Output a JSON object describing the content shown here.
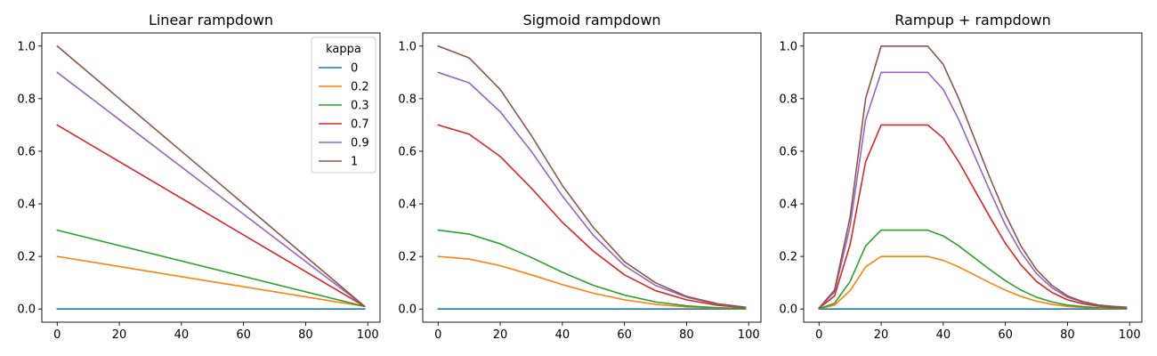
{
  "chart_data": [
    {
      "type": "line",
      "title": "Linear rampdown",
      "xlabel": "",
      "ylabel": "",
      "xlim": [
        -4.95,
        103.95
      ],
      "ylim": [
        -0.05,
        1.05
      ],
      "xticks": [
        0,
        20,
        40,
        60,
        80,
        100
      ],
      "yticks": [
        0.0,
        0.2,
        0.4,
        0.6,
        0.8,
        1.0
      ],
      "xtick_labels": [
        "0",
        "20",
        "40",
        "60",
        "80",
        "100"
      ],
      "ytick_labels": [
        "0.0",
        "0.2",
        "0.4",
        "0.6",
        "0.8",
        "1.0"
      ],
      "grid": false,
      "x": [
        0,
        99
      ],
      "series": [
        {
          "name": "0",
          "values": [
            0,
            0
          ]
        },
        {
          "name": "0.2",
          "values": [
            0.2,
            0.01
          ]
        },
        {
          "name": "0.3",
          "values": [
            0.3,
            0.01
          ]
        },
        {
          "name": "0.7",
          "values": [
            0.7,
            0.01
          ]
        },
        {
          "name": "0.9",
          "values": [
            0.9,
            0.01
          ]
        },
        {
          "name": "1",
          "values": [
            1.0,
            0.01
          ]
        }
      ],
      "legend": {
        "title": "kappa",
        "placement": "top-right"
      }
    },
    {
      "type": "line",
      "title": "Sigmoid rampdown",
      "xlabel": "",
      "ylabel": "",
      "xlim": [
        -4.95,
        103.95
      ],
      "ylim": [
        -0.05,
        1.05
      ],
      "xticks": [
        0,
        20,
        40,
        60,
        80,
        100
      ],
      "yticks": [
        0.0,
        0.2,
        0.4,
        0.6,
        0.8,
        1.0
      ],
      "xtick_labels": [
        "0",
        "20",
        "40",
        "60",
        "80",
        "100"
      ],
      "ytick_labels": [
        "0.0",
        "0.2",
        "0.4",
        "0.6",
        "0.8",
        "1.0"
      ],
      "grid": false,
      "x": [
        0,
        10,
        20,
        30,
        40,
        50,
        60,
        70,
        80,
        90,
        99
      ],
      "series": [
        {
          "name": "0",
          "values": [
            0,
            0,
            0,
            0,
            0,
            0,
            0,
            0,
            0,
            0,
            0
          ]
        },
        {
          "name": "0.2",
          "values": [
            0.2,
            0.19,
            0.165,
            0.13,
            0.093,
            0.06,
            0.035,
            0.018,
            0.008,
            0.003,
            0.001
          ]
        },
        {
          "name": "0.3",
          "values": [
            0.3,
            0.285,
            0.248,
            0.196,
            0.14,
            0.09,
            0.053,
            0.027,
            0.012,
            0.005,
            0.002
          ]
        },
        {
          "name": "0.7",
          "values": [
            0.7,
            0.665,
            0.58,
            0.46,
            0.33,
            0.22,
            0.13,
            0.07,
            0.035,
            0.014,
            0.005
          ]
        },
        {
          "name": "0.9",
          "values": [
            0.9,
            0.86,
            0.75,
            0.6,
            0.43,
            0.28,
            0.165,
            0.09,
            0.045,
            0.018,
            0.006
          ]
        },
        {
          "name": "1",
          "values": [
            1.0,
            0.955,
            0.835,
            0.66,
            0.47,
            0.31,
            0.18,
            0.1,
            0.048,
            0.02,
            0.007
          ]
        }
      ]
    },
    {
      "type": "line",
      "title": "Rampup + rampdown",
      "xlabel": "",
      "ylabel": "",
      "xlim": [
        -4.95,
        103.95
      ],
      "ylim": [
        -0.05,
        1.05
      ],
      "xticks": [
        0,
        20,
        40,
        60,
        80,
        100
      ],
      "yticks": [
        0.0,
        0.2,
        0.4,
        0.6,
        0.8,
        1.0
      ],
      "xtick_labels": [
        "0",
        "20",
        "40",
        "60",
        "80",
        "100"
      ],
      "ytick_labels": [
        "0.0",
        "0.2",
        "0.4",
        "0.6",
        "0.8",
        "1.0"
      ],
      "grid": false,
      "x": [
        0,
        5,
        10,
        15,
        20,
        25,
        30,
        35,
        40,
        45,
        50,
        55,
        60,
        65,
        70,
        75,
        80,
        85,
        90,
        95,
        99
      ],
      "series": [
        {
          "name": "0",
          "values": [
            0,
            0,
            0,
            0,
            0,
            0,
            0,
            0,
            0,
            0,
            0,
            0,
            0,
            0,
            0,
            0,
            0,
            0,
            0,
            0,
            0
          ]
        },
        {
          "name": "0.2",
          "values": [
            0.001,
            0.015,
            0.07,
            0.16,
            0.2,
            0.2,
            0.2,
            0.2,
            0.185,
            0.16,
            0.13,
            0.1,
            0.072,
            0.048,
            0.03,
            0.018,
            0.01,
            0.006,
            0.003,
            0.002,
            0.001
          ]
        },
        {
          "name": "0.3",
          "values": [
            0.001,
            0.022,
            0.105,
            0.24,
            0.3,
            0.3,
            0.3,
            0.3,
            0.278,
            0.24,
            0.195,
            0.15,
            0.108,
            0.072,
            0.045,
            0.027,
            0.015,
            0.009,
            0.005,
            0.003,
            0.002
          ]
        },
        {
          "name": "0.7",
          "values": [
            0.003,
            0.05,
            0.245,
            0.56,
            0.7,
            0.7,
            0.7,
            0.7,
            0.65,
            0.56,
            0.455,
            0.35,
            0.25,
            0.168,
            0.105,
            0.063,
            0.035,
            0.02,
            0.011,
            0.007,
            0.005
          ]
        },
        {
          "name": "0.9",
          "values": [
            0.004,
            0.065,
            0.315,
            0.72,
            0.9,
            0.9,
            0.9,
            0.9,
            0.835,
            0.72,
            0.585,
            0.45,
            0.32,
            0.216,
            0.135,
            0.081,
            0.045,
            0.026,
            0.014,
            0.009,
            0.006
          ]
        },
        {
          "name": "1",
          "values": [
            0.004,
            0.072,
            0.35,
            0.8,
            1.0,
            1.0,
            1.0,
            1.0,
            0.93,
            0.8,
            0.65,
            0.5,
            0.36,
            0.24,
            0.15,
            0.09,
            0.05,
            0.028,
            0.015,
            0.01,
            0.007
          ]
        }
      ]
    }
  ],
  "colors": {
    "series": [
      "#1f77b4",
      "#ff7f0e",
      "#2ca02c",
      "#d62728",
      "#9467bd",
      "#8c564b"
    ],
    "axes": "#000000",
    "background": "#ffffff",
    "legend_border": "#cccccc"
  }
}
